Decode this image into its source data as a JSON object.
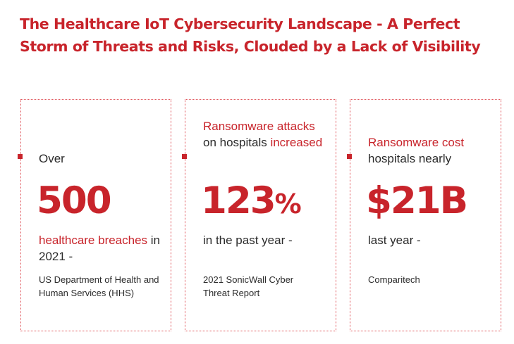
{
  "title": "The Healthcare IoT Cybersecurity Landscape - A Perfect Storm of Threats and Risks, Clouded by a Lack of Visibility",
  "colors": {
    "accent": "#c8242b",
    "text": "#2b2b2b",
    "border": "#e0555b"
  },
  "cards": [
    {
      "intro": "Over",
      "stat": "500",
      "desc_red": "healthcare breaches",
      "desc_rest": " in 2021 -",
      "source": "US Department of Health and Human Services (HHS)"
    },
    {
      "intro_red_1": "Ransomware attacks",
      "intro_1": " on hospitals ",
      "intro_red_2": "increased",
      "stat_number": "123",
      "stat_unit": "%",
      "desc": "in the past year -",
      "source": "2021 SonicWall Cyber Threat Report"
    },
    {
      "intro_red": "Ransomware cost",
      "intro_rest": " hospitals nearly",
      "stat": "$21B",
      "desc": "last year -",
      "source": "Comparitech"
    }
  ]
}
